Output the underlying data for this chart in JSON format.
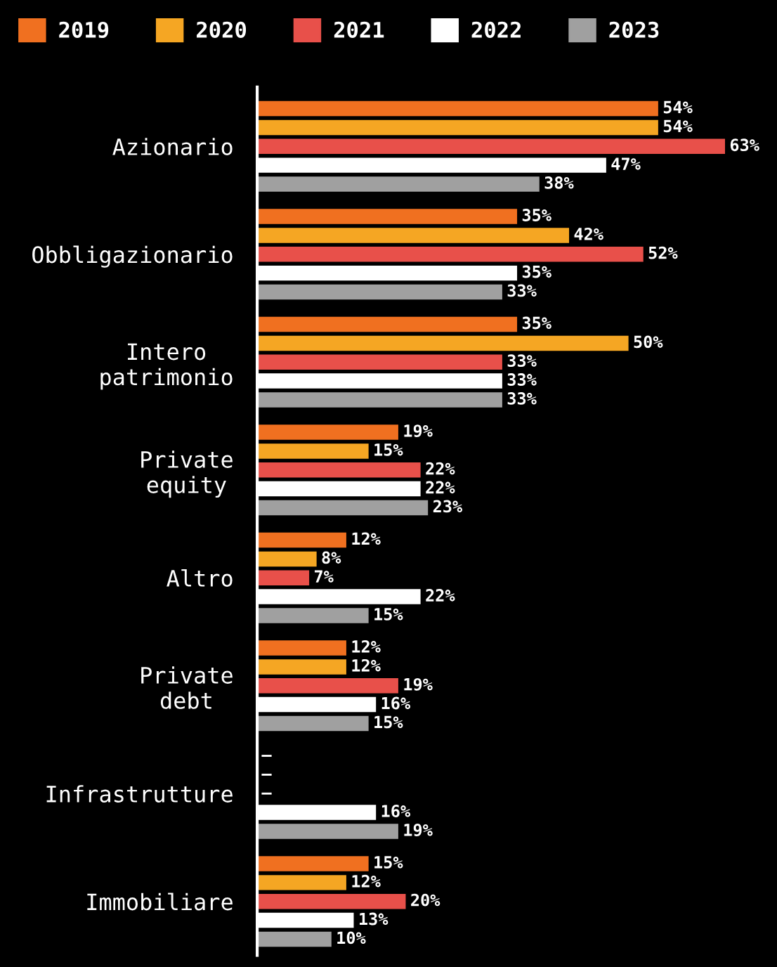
{
  "chart_data": {
    "type": "bar",
    "orientation": "horizontal",
    "categories": [
      "Azionario",
      "Obbligazionario",
      "Intero\npatrimonio",
      "Private\nequity",
      "Altro",
      "Private\ndebt",
      "Infrastrutture",
      "Immobiliare"
    ],
    "xlim": [
      0,
      70
    ],
    "grid": false,
    "legend": "top left",
    "series": [
      {
        "name": "2019",
        "color": "#f07020",
        "values": [
          54,
          35,
          35,
          19,
          12,
          12,
          null,
          15
        ],
        "value_labels": [
          "54%",
          "35%",
          "35%",
          "19%",
          "12%",
          "12%",
          "–",
          "15%"
        ]
      },
      {
        "name": "2020",
        "color": "#f5a623",
        "values": [
          54,
          42,
          50,
          15,
          8,
          12,
          null,
          12
        ],
        "value_labels": [
          "54%",
          "42%",
          "50%",
          "15%",
          "8%",
          "12%",
          "–",
          "12%"
        ]
      },
      {
        "name": "2021",
        "color": "#e8504a",
        "values": [
          63,
          52,
          33,
          22,
          7,
          19,
          null,
          20
        ],
        "value_labels": [
          "63%",
          "52%",
          "33%",
          "22%",
          "7%",
          "19%",
          "–",
          "20%"
        ]
      },
      {
        "name": "2022",
        "color": "#ffffff",
        "values": [
          47,
          35,
          33,
          22,
          22,
          16,
          16,
          13
        ],
        "value_labels": [
          "47%",
          "35%",
          "33%",
          "22%",
          "22%",
          "16%",
          "16%",
          "13%"
        ]
      },
      {
        "name": "2023",
        "color": "#a0a0a0",
        "values": [
          38,
          33,
          33,
          23,
          15,
          15,
          19,
          10
        ],
        "value_labels": [
          "38%",
          "33%",
          "33%",
          "23%",
          "15%",
          "15%",
          "19%",
          "10%"
        ]
      }
    ]
  }
}
